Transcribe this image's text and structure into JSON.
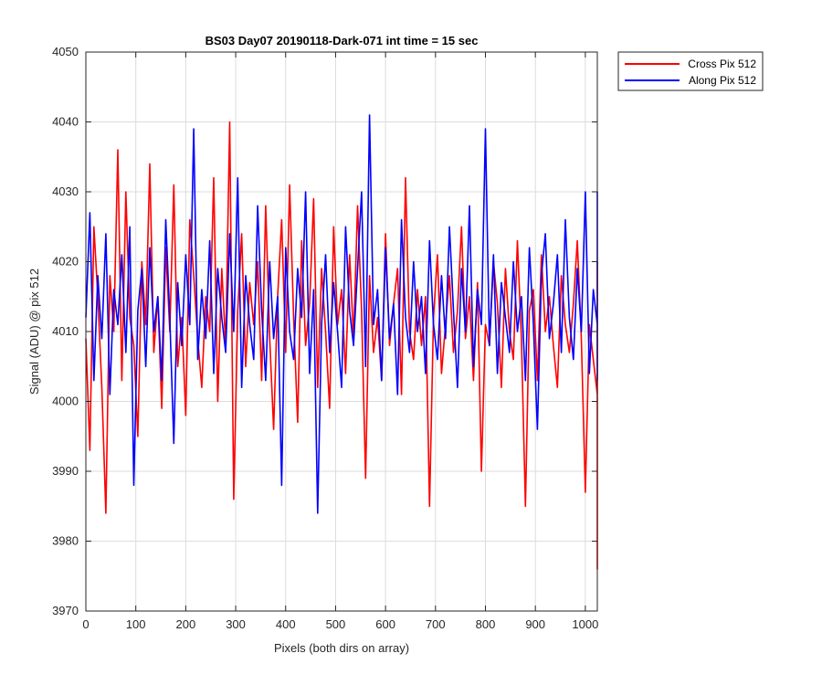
{
  "chart_data": {
    "type": "line",
    "title": "BS03 Day07 20190118-Dark-071 int time = 15 sec",
    "xlabel": "Pixels (both dirs on array)",
    "ylabel": "Signal (ADU) @ pix 512",
    "xlim": [
      0,
      1024
    ],
    "ylim": [
      3970,
      4050
    ],
    "xticks": [
      0,
      100,
      200,
      300,
      400,
      500,
      600,
      700,
      800,
      900,
      1000
    ],
    "yticks": [
      3970,
      3980,
      3990,
      4000,
      4010,
      4020,
      4030,
      4040,
      4050
    ],
    "grid": true,
    "legend_position": "outside-top-right",
    "series": [
      {
        "name": "Cross Pix 512",
        "color": "#ff0000",
        "sample_step": 8,
        "x_start": 0,
        "values": [
          4009,
          3993,
          4025,
          4015,
          4002,
          3984,
          4018,
          4010,
          4036,
          4003,
          4030,
          4012,
          4008,
          3995,
          4020,
          4011,
          4034,
          4007,
          4015,
          3999,
          4022,
          4010,
          4031,
          4005,
          4012,
          3998,
          4026,
          4018,
          4009,
          4002,
          4015,
          4010,
          4032,
          4000,
          4019,
          4008,
          4040,
          3986,
          4013,
          4024,
          4005,
          4017,
          4011,
          4020,
          4003,
          4028,
          4009,
          3996,
          4015,
          4026,
          4007,
          4031,
          4012,
          3997,
          4023,
          4008,
          4014,
          4029,
          4002,
          4019,
          4010,
          3999,
          4025,
          4011,
          4016,
          4004,
          4021,
          4009,
          4028,
          4013,
          3989,
          4018,
          4007,
          4012,
          4003,
          4024,
          4008,
          4014,
          4019,
          4001,
          4032,
          4010,
          4006,
          4016,
          4008,
          4015,
          3985,
          4012,
          4021,
          4004,
          4011,
          4018,
          4007,
          4013,
          4025,
          4009,
          4015,
          4003,
          4017,
          3990,
          4011,
          4008,
          4020,
          4014,
          4002,
          4019,
          4010,
          4006,
          4023,
          4009,
          3985,
          4013,
          4016,
          4003,
          4021,
          4010,
          4015,
          4008,
          4002,
          4018,
          4011,
          4007,
          4014,
          4023,
          4009,
          3987,
          4011,
          4006,
          4001,
          4012,
          4005,
          4008,
          3976,
          4003,
          4016,
          4007,
          4010,
          4020,
          4009,
          4011,
          4006,
          4003,
          4015,
          4008,
          4012
        ]
      },
      {
        "name": "Along Pix 512",
        "color": "#0000ff",
        "sample_step": 8,
        "x_start": 0,
        "values": [
          4012,
          4027,
          4003,
          4018,
          4009,
          4024,
          4001,
          4016,
          4011,
          4021,
          4007,
          4025,
          3988,
          4013,
          4019,
          4005,
          4022,
          4010,
          4015,
          4003,
          4026,
          4012,
          3994,
          4017,
          4008,
          4021,
          4011,
          4039,
          4006,
          4016,
          4009,
          4023,
          4004,
          4019,
          4012,
          4007,
          4024,
          4010,
          4032,
          4002,
          4018,
          4011,
          4006,
          4028,
          4013,
          4003,
          4020,
          4009,
          4015,
          3988,
          4022,
          4010,
          4006,
          4019,
          4012,
          4030,
          4004,
          4016,
          3984,
          4011,
          4021,
          4007,
          4017,
          4010,
          4002,
          4025,
          4013,
          4008,
          4019,
          4030,
          4005,
          4041,
          4011,
          4016,
          4003,
          4022,
          4009,
          4014,
          4001,
          4026,
          4012,
          4007,
          4020,
          4010,
          4015,
          4004,
          4023,
          4011,
          4006,
          4018,
          4009,
          4025,
          4013,
          4002,
          4019,
          4010,
          4028,
          4005,
          4016,
          4011,
          4039,
          4008,
          4021,
          4004,
          4017,
          4012,
          4007,
          4020,
          4010,
          4015,
          4003,
          4022,
          4011,
          3996,
          4018,
          4024,
          4009,
          4014,
          4021,
          4007,
          4026,
          4012,
          4006,
          4019,
          4010,
          4030,
          4004,
          4016,
          4011,
          4008,
          4022,
          4003,
          4017,
          4012,
          4027,
          4009,
          4015,
          4006,
          4020,
          4011,
          4030,
          4008,
          4024,
          4013,
          4009
        ]
      }
    ]
  }
}
